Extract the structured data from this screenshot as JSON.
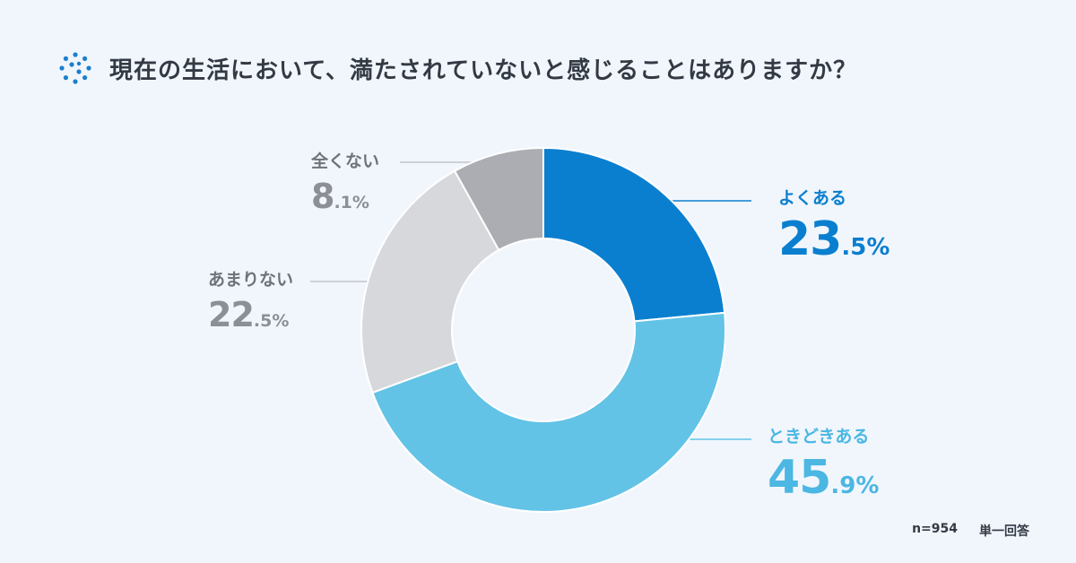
{
  "title": "現在の生活において、満たされていないと感じることはありますか？",
  "footer": {
    "sample": "n=954",
    "answer_type": "単一回答"
  },
  "colors": {
    "background": "#f1f6fd",
    "often": "#0a7fcf",
    "sometimes": "#62c3e6",
    "rarely": "#d7d8dc",
    "never": "#abadb2",
    "icon": "#1b7fcc"
  },
  "chart_data": {
    "type": "pie",
    "style": "donut",
    "slices": [
      {
        "label": "よくある",
        "value": 23.5,
        "int": "23",
        "dec": ".5%",
        "color": "#0a7fcf",
        "text_color": "#0a7fcf"
      },
      {
        "label": "ときどきある",
        "value": 45.9,
        "int": "45",
        "dec": ".9%",
        "color": "#62c3e6",
        "text_color": "#4bb7e2"
      },
      {
        "label": "あまりない",
        "value": 22.5,
        "int": "22",
        "dec": ".5%",
        "color": "#d7d8dc",
        "text_color": "#8c8f95"
      },
      {
        "label": "全くない",
        "value": 8.1,
        "int": "8",
        "dec": ".1%",
        "color": "#abadb2",
        "text_color": "#8c8f95"
      }
    ]
  }
}
